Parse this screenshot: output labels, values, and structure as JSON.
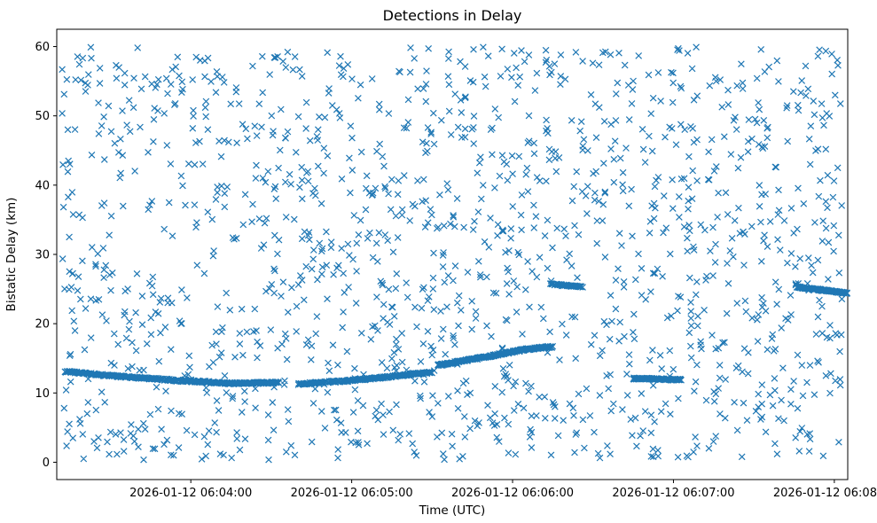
{
  "chart_data": {
    "type": "scatter",
    "title": "Detections in Delay",
    "xlabel": "Time (UTC)",
    "ylabel": "Bistatic Delay (km)",
    "marker": "x",
    "marker_color": "#1f77b4",
    "legend": "none",
    "grid": false,
    "x_axis": {
      "tick_labels": [
        "2026-01-12 06:04:00",
        "2026-01-12 06:05:00",
        "2026-01-12 06:06:00",
        "2026-01-12 06:07:00",
        "2026-01-12 06:08:00"
      ],
      "tick_seconds": [
        50,
        110,
        170,
        230,
        290
      ],
      "domain_seconds": [
        0,
        295
      ]
    },
    "y_axis": {
      "tick_labels": [
        "0",
        "10",
        "20",
        "30",
        "40",
        "50",
        "60"
      ],
      "tick_values": [
        0,
        10,
        20,
        30,
        40,
        50,
        60
      ],
      "range": [
        -2.5,
        62.5
      ]
    },
    "clutter": {
      "count": 1500,
      "seed": 20260112,
      "x_range_seconds": [
        2,
        293
      ],
      "y_range_km": [
        0.3,
        60.0
      ]
    },
    "tracks": [
      {
        "name": "track-descending-left",
        "density_per_second": 4,
        "y_jitter": 0.12,
        "control_points": [
          [
            3,
            13.1
          ],
          [
            20,
            12.5
          ],
          [
            45,
            11.8
          ],
          [
            65,
            11.4
          ],
          [
            83,
            11.5
          ]
        ]
      },
      {
        "name": "track-slow-rise",
        "density_per_second": 4,
        "y_jitter": 0.12,
        "control_points": [
          [
            90,
            11.3
          ],
          [
            110,
            11.8
          ],
          [
            128,
            12.5
          ],
          [
            140,
            13.0
          ]
        ]
      },
      {
        "name": "track-steep-rise",
        "density_per_second": 5,
        "y_jitter": 0.12,
        "control_points": [
          [
            142,
            14.0
          ],
          [
            160,
            15.2
          ],
          [
            175,
            16.3
          ],
          [
            185,
            16.7
          ]
        ]
      },
      {
        "name": "track-mid-flat-25",
        "density_per_second": 4,
        "y_jitter": 0.1,
        "control_points": [
          [
            184,
            25.7
          ],
          [
            196,
            25.3
          ]
        ]
      },
      {
        "name": "track-flat-12",
        "density_per_second": 6,
        "y_jitter": 0.1,
        "control_points": [
          [
            215,
            12.1
          ],
          [
            233,
            11.9
          ]
        ]
      },
      {
        "name": "track-right-flat-25",
        "density_per_second": 6,
        "y_jitter": 0.1,
        "control_points": [
          [
            276,
            25.3
          ],
          [
            295,
            24.4
          ]
        ]
      }
    ]
  }
}
